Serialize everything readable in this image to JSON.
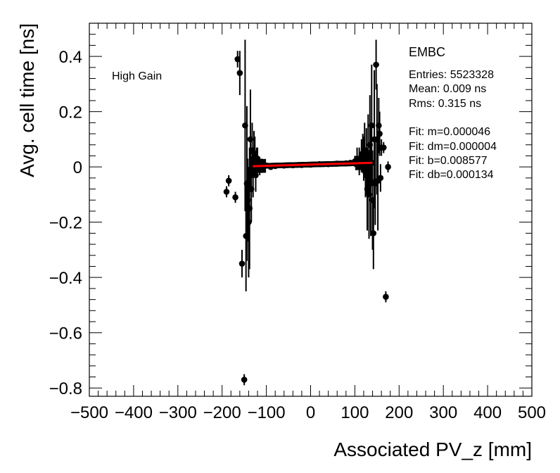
{
  "chart_data": {
    "type": "scatter",
    "xlabel": "Associated PV_z [mm]",
    "ylabel": "Avg. cell time [ns]",
    "xlim": [
      -500,
      500
    ],
    "ylim": [
      -0.83,
      0.52
    ],
    "xticks": [
      -500,
      -400,
      -300,
      -200,
      -100,
      0,
      100,
      200,
      300,
      400,
      500
    ],
    "xtick_labels": [
      "−500",
      "−400",
      "−300",
      "−200",
      "−100",
      "0",
      "100",
      "200",
      "300",
      "400",
      "500"
    ],
    "yticks": [
      0.4,
      0.2,
      0,
      -0.2,
      -0.4,
      -0.6,
      -0.8
    ],
    "ytick_labels": [
      "0.4",
      "0.2",
      "0",
      "−0.2",
      "−0.4",
      "−0.6",
      "−0.8"
    ],
    "annotation": "High Gain",
    "stats": {
      "title": "EMBC",
      "lines": [
        "Entries: 5523328",
        "Mean: 0.009 ns",
        "Rms: 0.315 ns"
      ],
      "fit_lines": [
        "Fit: m=0.000046",
        "Fit: dm=0.000004",
        "Fit: b=0.008577",
        "Fit: db=0.000134"
      ]
    },
    "fit": {
      "m": 4.6e-05,
      "b": 0.008577,
      "x_range": [
        -130,
        140
      ],
      "color": "#ff0000"
    },
    "series": [
      {
        "color": "#000000",
        "x": [
          -190,
          -185,
          -170,
          -165,
          -160,
          -155,
          -150,
          -148,
          -146,
          -144,
          -142,
          -140,
          -138,
          -136,
          -134,
          -132,
          -130,
          -128,
          -126,
          -124,
          -122,
          -120,
          -115,
          -110,
          -100,
          -90,
          -80,
          -60,
          -40,
          -20,
          0,
          20,
          40,
          60,
          80,
          90,
          100,
          105,
          110,
          115,
          118,
          120,
          122,
          124,
          126,
          128,
          130,
          132,
          134,
          136,
          138,
          140,
          142,
          144,
          146,
          148,
          150,
          152,
          154,
          156,
          158,
          160,
          165,
          170,
          175
        ],
        "y": [
          -0.09,
          -0.05,
          -0.11,
          0.39,
          0.34,
          -0.35,
          -0.77,
          0.15,
          -0.25,
          -0.06,
          -0.12,
          -0.2,
          -0.15,
          0.1,
          -0.08,
          0.06,
          -0.02,
          0.05,
          0.04,
          -0.03,
          0.02,
          0.03,
          0.0,
          0.01,
          0.005,
          0.0,
          0.003,
          0.005,
          0.006,
          0.007,
          0.008,
          0.01,
          0.01,
          0.012,
          0.013,
          0.015,
          0.02,
          0.03,
          0.02,
          0.04,
          0.05,
          0.03,
          0.06,
          -0.02,
          0.02,
          -0.08,
          0.05,
          -0.1,
          0.08,
          -0.05,
          0.15,
          -0.12,
          -0.24,
          0.1,
          -0.06,
          0.37,
          0.1,
          -0.05,
          0.15,
          0.12,
          -0.04,
          0.07,
          0.07,
          -0.47,
          0.0
        ],
        "err": [
          0.02,
          0.02,
          0.02,
          0.03,
          0.08,
          0.05,
          0.02,
          0.31,
          0.2,
          0.28,
          0.15,
          0.2,
          0.22,
          0.18,
          0.12,
          0.1,
          0.09,
          0.08,
          0.07,
          0.06,
          0.05,
          0.04,
          0.03,
          0.02,
          0.01,
          0.01,
          0.01,
          0.01,
          0.01,
          0.01,
          0.01,
          0.01,
          0.01,
          0.01,
          0.01,
          0.01,
          0.02,
          0.04,
          0.05,
          0.06,
          0.07,
          0.08,
          0.1,
          0.09,
          0.12,
          0.15,
          0.14,
          0.16,
          0.18,
          0.2,
          0.22,
          0.18,
          0.13,
          0.25,
          0.15,
          0.09,
          0.2,
          0.18,
          0.1,
          0.08,
          0.05,
          0.03,
          0.02,
          0.02,
          0.02
        ]
      }
    ],
    "legend": "none",
    "grid": false
  }
}
